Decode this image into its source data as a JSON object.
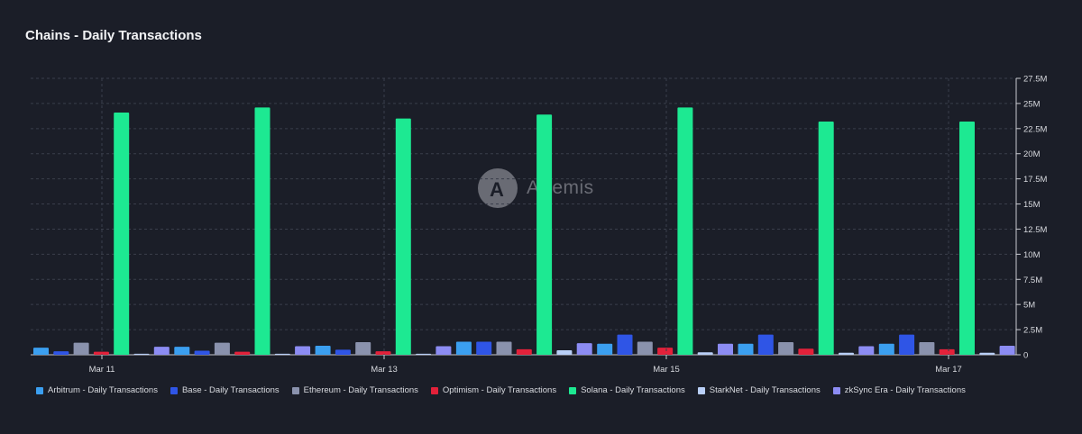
{
  "chart_data": {
    "type": "bar",
    "title": "Chains - Daily Transactions",
    "ylim": [
      0,
      27.5
    ],
    "y_ticks": [
      "0",
      "2.5M",
      "5M",
      "7.5M",
      "10M",
      "12.5M",
      "15M",
      "17.5M",
      "20M",
      "22.5M",
      "25M",
      "27.5M"
    ],
    "x_ticks": [
      "Mar 11",
      "Mar 13",
      "Mar 15",
      "Mar 17"
    ],
    "categories": [
      "Mar 11",
      "Mar 12",
      "Mar 13",
      "Mar 14",
      "Mar 15",
      "Mar 16",
      "Mar 17"
    ],
    "grid": true,
    "legend_position": "bottom",
    "watermark": "Artemis",
    "series": [
      {
        "name": "Arbitrum - Daily Transactions",
        "color": "#3b9ff0",
        "values": [
          0.7,
          0.8,
          0.9,
          1.3,
          1.1,
          1.1,
          1.1
        ]
      },
      {
        "name": "Base - Daily Transactions",
        "color": "#2f55e6",
        "values": [
          0.35,
          0.4,
          0.5,
          1.3,
          2.0,
          2.0,
          2.0
        ]
      },
      {
        "name": "Ethereum - Daily Transactions",
        "color": "#8a92ad",
        "values": [
          1.2,
          1.2,
          1.25,
          1.3,
          1.3,
          1.25,
          1.25
        ]
      },
      {
        "name": "Optimism - Daily Transactions",
        "color": "#e3213a",
        "values": [
          0.3,
          0.3,
          0.35,
          0.55,
          0.7,
          0.6,
          0.55
        ]
      },
      {
        "name": "Solana - Daily Transactions",
        "color": "#1de992",
        "values": [
          24.1,
          24.6,
          23.5,
          23.9,
          24.6,
          23.2,
          23.2
        ]
      },
      {
        "name": "StarkNet - Daily Transactions",
        "color": "#b9cff7",
        "values": [
          0.1,
          0.1,
          0.1,
          0.45,
          0.25,
          0.2,
          0.2
        ]
      },
      {
        "name": "zkSync Era - Daily Transactions",
        "color": "#8c8cf3",
        "values": [
          0.8,
          0.85,
          0.85,
          1.15,
          1.1,
          0.85,
          0.9
        ]
      }
    ]
  }
}
